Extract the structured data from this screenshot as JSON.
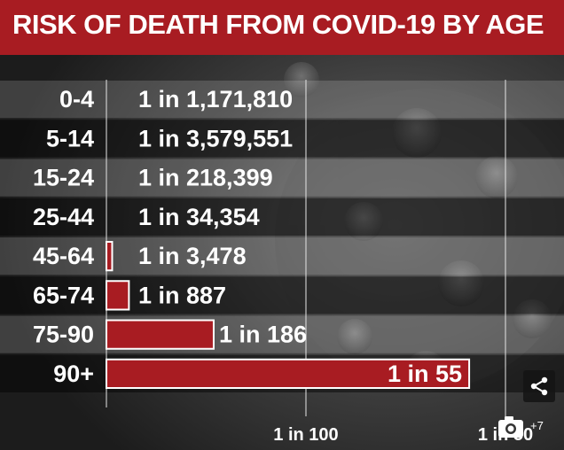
{
  "title": "RISK OF DEATH FROM COVID-19 BY AGE",
  "chart_data": {
    "type": "bar",
    "orientation": "horizontal",
    "title": "RISK OF DEATH FROM COVID-19 BY AGE",
    "categories": [
      "0-4",
      "5-14",
      "15-24",
      "25-44",
      "45-64",
      "65-74",
      "75-90",
      "90+"
    ],
    "values": [
      8.534e-07,
      2.794e-07,
      4.5788e-06,
      2.91087e-05,
      0.0002875216,
      0.0011273957,
      0.0053763441,
      0.0181818182
    ],
    "value_labels": [
      "1 in 1,171,810",
      "1 in 3,579,551",
      "1 in 218,399",
      "1 in 34,354",
      "1 in 3,478",
      "1 in 887",
      "1 in 186",
      "1 in 55"
    ],
    "x_ticks": [
      {
        "value": 0.01,
        "label": "1 in 100"
      },
      {
        "value": 0.02,
        "label": "1 in 50"
      }
    ],
    "xlim": [
      0,
      0.02
    ],
    "grid": true,
    "colors": {
      "bar": "#a81c22",
      "bar_border": "#ffffff",
      "title_bg": "#a81c22",
      "text": "#ffffff"
    }
  },
  "ui": {
    "share_icon": "share-icon",
    "gallery_icon": "camera-icon",
    "gallery_count": "+7"
  }
}
